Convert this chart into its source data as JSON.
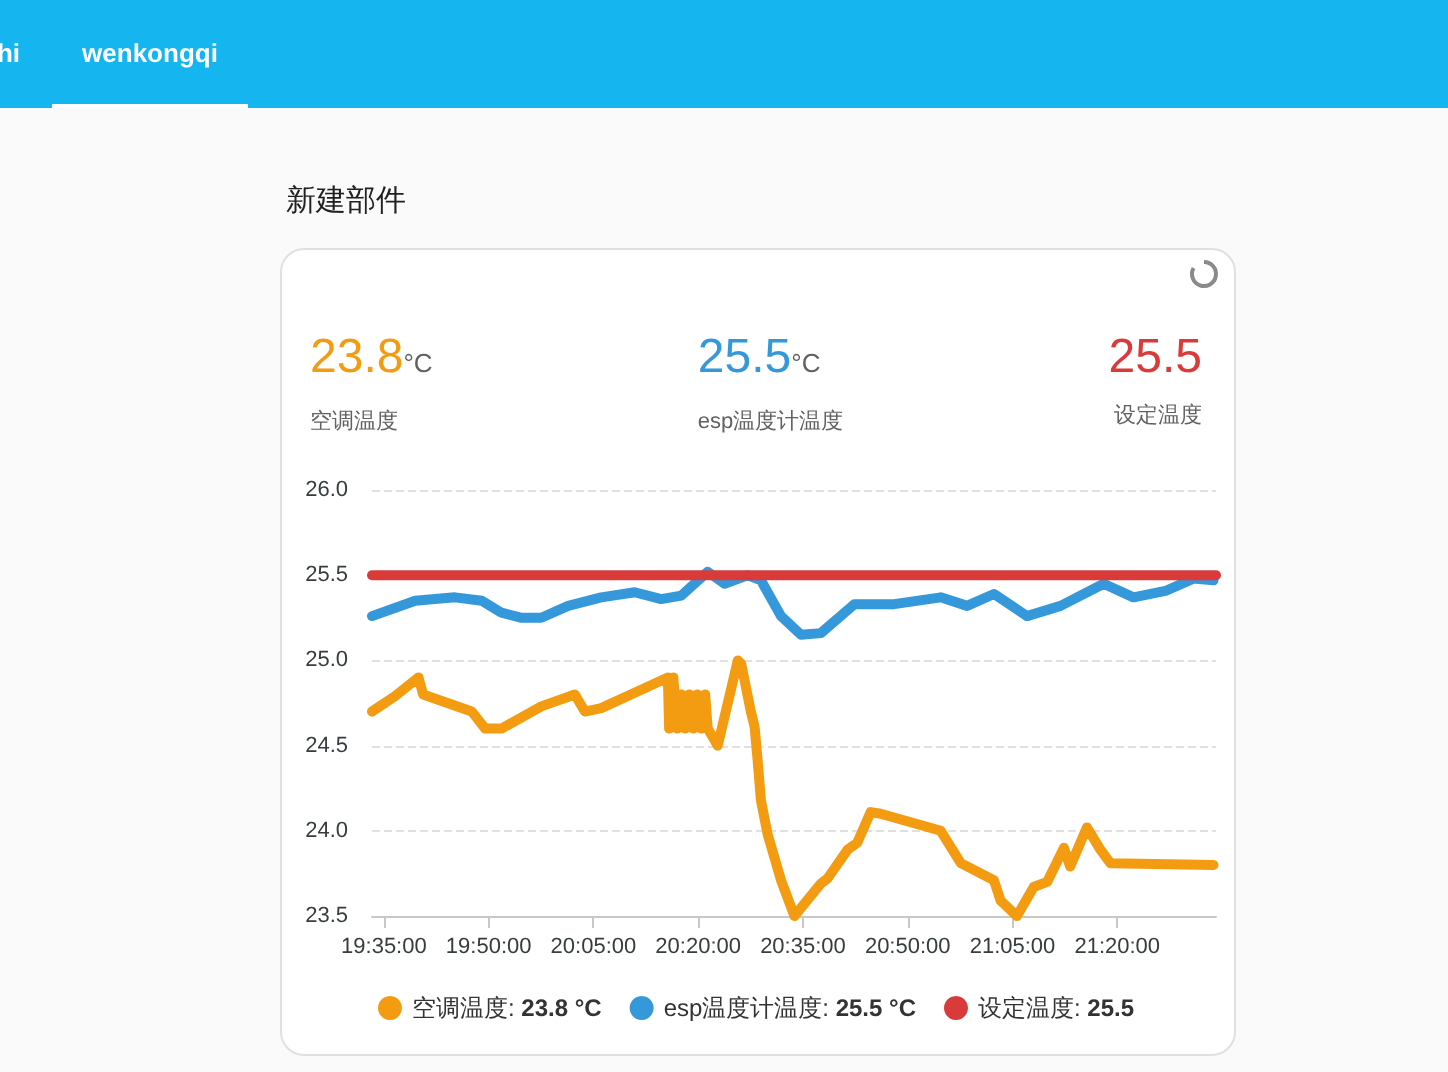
{
  "chart_data": {
    "type": "line",
    "title": "新建部件",
    "annotations": [
      "hi",
      "wenkongqi",
      "23.8°C",
      "空调温度",
      "25.5°C",
      "esp温度计温度",
      "25.5",
      "设定温度",
      "23.8 °C",
      "25.5 °C",
      "25.5"
    ],
    "series": [
      {
        "name": "空调温度:",
        "color": "#f39c12",
        "x": [
          19.555,
          19.61,
          19.666,
          19.677,
          19.793,
          19.825,
          19.864,
          19.959,
          20.039,
          20.063,
          20.102,
          20.261,
          20.264,
          20.274,
          20.283,
          20.293,
          20.302,
          20.312,
          20.321,
          20.331,
          20.34,
          20.35,
          20.356,
          20.38,
          20.428,
          20.436,
          20.459,
          20.468,
          20.475,
          20.483,
          20.499,
          20.531,
          20.563,
          20.626,
          20.642,
          20.69,
          20.713,
          20.745,
          20.769,
          20.912,
          20.96,
          21.039,
          21.055,
          21.094,
          21.134,
          21.166,
          21.206,
          21.221,
          21.261,
          21.293,
          21.317,
          21.563
        ],
        "values": [
          24.7,
          24.79,
          24.9,
          24.8,
          24.7,
          24.6,
          24.6,
          24.73,
          24.8,
          24.7,
          24.72,
          24.9,
          24.6,
          24.9,
          24.6,
          24.8,
          24.6,
          24.8,
          24.6,
          24.8,
          24.6,
          24.8,
          24.6,
          24.5,
          25.0,
          24.98,
          24.7,
          24.61,
          24.42,
          24.18,
          23.98,
          23.71,
          23.5,
          23.69,
          23.72,
          23.89,
          23.93,
          24.11,
          24.1,
          24.0,
          23.81,
          23.71,
          23.59,
          23.5,
          23.67,
          23.7,
          23.9,
          23.79,
          24.02,
          23.89,
          23.81,
          23.8
        ]
      },
      {
        "name": "esp温度计温度:",
        "color": "#3498db",
        "x": [
          19.555,
          19.658,
          19.753,
          19.817,
          19.864,
          19.912,
          19.959,
          20.023,
          20.102,
          20.182,
          20.245,
          20.293,
          20.356,
          20.396,
          20.451,
          20.483,
          20.531,
          20.579,
          20.626,
          20.706,
          20.801,
          20.912,
          20.975,
          21.039,
          21.118,
          21.198,
          21.301,
          21.372,
          21.451,
          21.515,
          21.563
        ],
        "values": [
          25.26,
          25.35,
          25.37,
          25.35,
          25.28,
          25.25,
          25.25,
          25.32,
          25.37,
          25.4,
          25.36,
          25.38,
          25.52,
          25.45,
          25.5,
          25.47,
          25.26,
          25.15,
          25.16,
          25.33,
          25.33,
          25.37,
          25.32,
          25.39,
          25.26,
          25.32,
          25.45,
          25.37,
          25.41,
          25.48,
          25.47
        ]
      },
      {
        "name": "设定温度:",
        "color": "#d93b3b",
        "x": [
          19.555,
          21.569
        ],
        "values": [
          25.5,
          25.5
        ]
      }
    ],
    "xlim": [
      19.555,
      21.569
    ],
    "xticks": [
      {
        "value": 19.58333,
        "label": "19:35:00"
      },
      {
        "value": 19.83333,
        "label": "19:50:00"
      },
      {
        "value": 20.08333,
        "label": "20:05:00"
      },
      {
        "value": 20.33333,
        "label": "20:20:00"
      },
      {
        "value": 20.58333,
        "label": "20:35:00"
      },
      {
        "value": 20.83333,
        "label": "20:50:00"
      },
      {
        "value": 21.08333,
        "label": "21:05:00"
      },
      {
        "value": 21.33333,
        "label": "21:20:00"
      }
    ],
    "ylim": [
      23.5,
      26
    ],
    "yticks": [
      23.5,
      {
        "value": 24,
        "label": "24.0"
      },
      24.5,
      {
        "value": 25,
        "label": "25.0"
      },
      25.5,
      {
        "value": 26,
        "label": "26.0"
      }
    ],
    "grid": "y",
    "legend": "bottom",
    "marker": "none",
    "line_style": "solid"
  }
}
